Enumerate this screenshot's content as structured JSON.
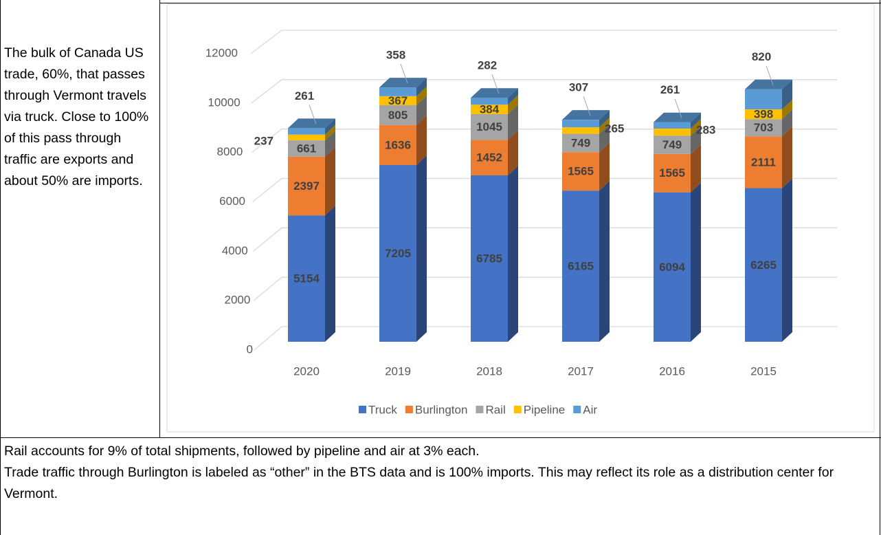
{
  "side_text": "The bulk of Canada US trade, 60%, that passes through Vermont travels via truck. Close to 100% of this pass through traffic are exports and about 50% are imports.",
  "chart_data": {
    "type": "bar",
    "stacked": true,
    "categories": [
      "2020",
      "2019",
      "2018",
      "2017",
      "2016",
      "2015"
    ],
    "series": [
      {
        "name": "Truck",
        "color": "#4472c4",
        "values": [
          5154,
          7205,
          6785,
          6165,
          6094,
          6265
        ]
      },
      {
        "name": "Burlington",
        "color": "#ed7d31",
        "values": [
          2397,
          1636,
          1452,
          1565,
          1565,
          2111
        ]
      },
      {
        "name": "Rail",
        "color": "#a5a5a5",
        "values": [
          661,
          805,
          1045,
          749,
          749,
          703
        ]
      },
      {
        "name": "Pipeline",
        "color": "#ffc000",
        "values": [
          237,
          367,
          384,
          265,
          283,
          398
        ]
      },
      {
        "name": "Air",
        "color": "#5b9bd5",
        "values": [
          261,
          358,
          282,
          307,
          261,
          820
        ]
      }
    ],
    "ylim": [
      0,
      12000
    ],
    "yticks": [
      0,
      2000,
      4000,
      6000,
      8000,
      10000,
      12000
    ],
    "grid": true,
    "legend": "bottom"
  },
  "bottom_text": [
    "Rail accounts for 9% of total shipments, followed by pipeline and air at 3% each.",
    "Trade traffic through Burlington is labeled as “other” in the BTS data and is 100% imports. This may reflect its role as a distribution center for Vermont."
  ]
}
